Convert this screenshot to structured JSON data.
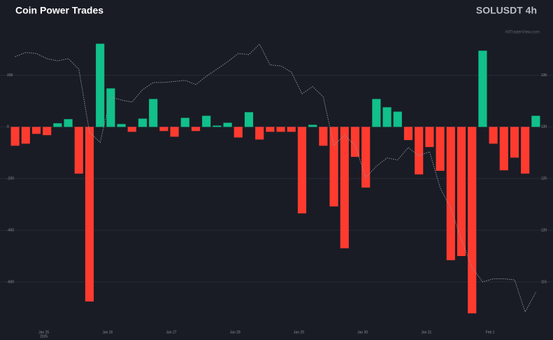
{
  "chart_data": {
    "type": "bar",
    "title": "Coin Power Trades",
    "subtitle": "SOLUSDT 4h",
    "watermark": "AllTraderView.com",
    "categories": [
      null,
      null,
      null,
      "Jan 25",
      null,
      null,
      null,
      null,
      null,
      "Jan 26",
      null,
      null,
      null,
      null,
      null,
      "Jan 27",
      null,
      null,
      null,
      null,
      null,
      "Jan 28",
      null,
      null,
      null,
      null,
      null,
      "Jan 29",
      null,
      null,
      null,
      null,
      null,
      "Jan 30",
      null,
      null,
      null,
      null,
      null,
      "Jan 31",
      null,
      null,
      null,
      null,
      null,
      "Feb 1",
      null,
      null,
      null,
      null
    ],
    "year_label": "2025",
    "values": [
      -73,
      -65,
      -27,
      -32,
      14,
      30,
      -181,
      -676,
      322,
      149,
      11,
      -19,
      32,
      108,
      -16,
      -38,
      35,
      -16,
      43,
      5,
      16,
      -41,
      57,
      -49,
      -19,
      -19,
      -19,
      -335,
      8,
      -73,
      -308,
      -470,
      -116,
      -235,
      108,
      76,
      59,
      -51,
      -184,
      -78,
      -170,
      -516,
      -500,
      -722,
      295,
      -65,
      -168,
      -119,
      -181,
      43
    ],
    "positive_color": "#11c08a",
    "negative_color": "#ff3b2f",
    "line": {
      "values": [
        136.8,
        137.2,
        137.1,
        136.6,
        136.4,
        136.6,
        135.6,
        129.5,
        128.5,
        132.9,
        132.6,
        132.4,
        133.6,
        134.3,
        134.3,
        134.4,
        134.5,
        134.1,
        134.9,
        135.6,
        136.3,
        137.1,
        137.0,
        138.0,
        136.0,
        135.9,
        135.3,
        133.2,
        133.9,
        132.9,
        128.2,
        129.2,
        128.2,
        125.1,
        126.2,
        127.0,
        126.8,
        128.0,
        127.2,
        127.6,
        124.1,
        122.1,
        119.1,
        116.4,
        115.0,
        115.3,
        115.3,
        115.2,
        112.1,
        114.0
      ],
      "color": "#8d919b",
      "axis": "y2"
    },
    "ylim": [
      -760,
      410
    ],
    "yticks": [
      200,
      0,
      -200,
      -400,
      -600
    ],
    "y2lim": [
      111,
      140.25
    ],
    "y2ticks": [
      135,
      130,
      125,
      120,
      115
    ],
    "grid": true
  }
}
